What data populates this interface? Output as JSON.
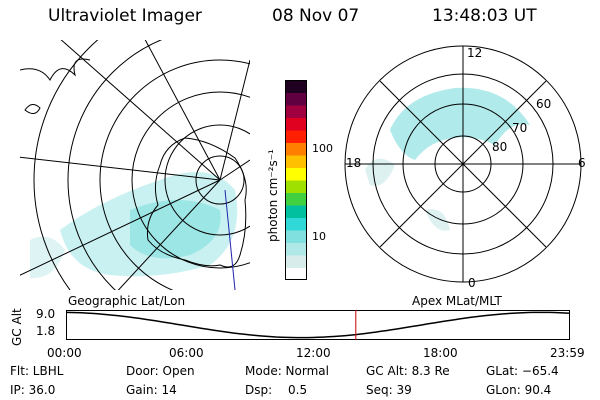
{
  "header": {
    "instrument": "Ultraviolet Imager",
    "date": "08 Nov 07",
    "time": "13:48:03 UT"
  },
  "geo_map": {
    "caption": "Geographic Lat/Lon"
  },
  "polar_plot": {
    "caption": "Apex MLat/MLT",
    "mlt_labels": {
      "top": "12",
      "left": "18",
      "right": "6",
      "bottom": "0"
    },
    "lat_labels": [
      "60",
      "70",
      "80"
    ]
  },
  "colorbar": {
    "title": "photon cm⁻²s⁻¹",
    "ticks": [
      "100",
      "10"
    ],
    "colors": [
      "#ffffff",
      "#d8ecec",
      "#b0e8e8",
      "#80e0e0",
      "#30d8d8",
      "#00c0a0",
      "#40d040",
      "#a0e000",
      "#ffff00",
      "#ffc000",
      "#ff8000",
      "#ff2000",
      "#e00020",
      "#a00040",
      "#600040",
      "#200020"
    ]
  },
  "altitude_plot": {
    "axis_label": "GC Alt",
    "y_ticks": [
      "9.0",
      "1.8"
    ],
    "x_ticks": [
      "00:00",
      "06:00",
      "12:00",
      "18:00",
      "23:59"
    ],
    "ylim": [
      1.8,
      9.0
    ],
    "current_time_hours": 13.8
  },
  "status": {
    "flt": "Flt: LBHL",
    "door": "Door: Open",
    "mode": "Mode: Normal",
    "gc_alt": "GC Alt: 8.3 Re",
    "glat": "GLat: −65.4",
    "ip": "IP: 36.0",
    "gain": "Gain: 14",
    "dsp_label": "Dsp:",
    "dsp_value": "0.5",
    "seq": "Seq: 39",
    "glon": "GLon:  90.4"
  }
}
